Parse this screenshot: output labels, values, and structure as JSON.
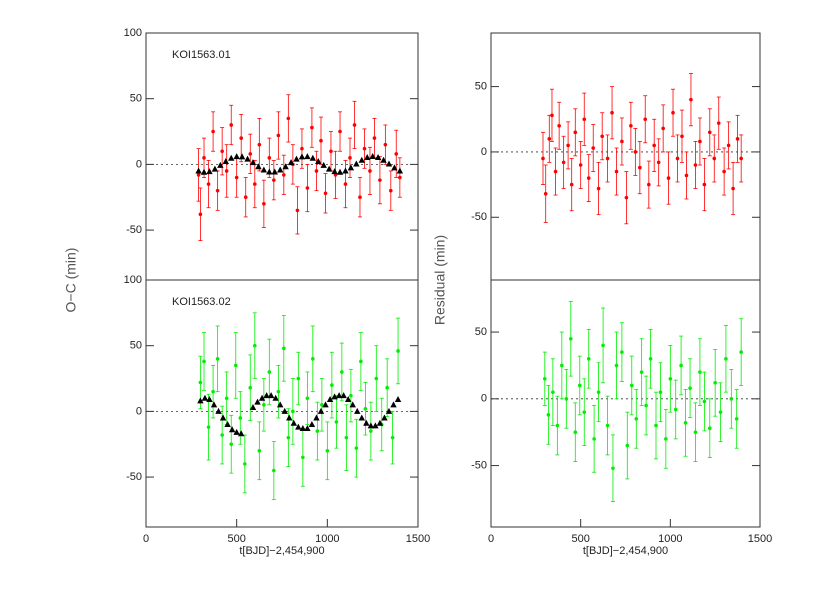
{
  "chart_data": [
    {
      "type": "scatter",
      "annotation": "KOI1563.01",
      "ylabel": "O−C (min)",
      "xlim": [
        0,
        1500
      ],
      "ylim": [
        -88,
        100
      ],
      "yticks": [
        -50,
        0,
        50,
        100
      ],
      "reference_line": 0,
      "series": [
        {
          "color": "#ff0000",
          "marker": "circle",
          "x": [
            290,
            300,
            320,
            345,
            370,
            395,
            420,
            445,
            470,
            500,
            525,
            550,
            575,
            600,
            625,
            650,
            680,
            705,
            730,
            760,
            785,
            810,
            835,
            860,
            890,
            915,
            940,
            965,
            990,
            1020,
            1045,
            1070,
            1100,
            1125,
            1150,
            1180,
            1205,
            1235,
            1260,
            1290,
            1320,
            1350,
            1380,
            1400
          ],
          "values": [
            -8,
            -38,
            5,
            -15,
            25,
            -20,
            10,
            -5,
            30,
            -10,
            20,
            -25,
            8,
            -15,
            15,
            -30,
            5,
            -12,
            22,
            -8,
            35,
            0,
            -35,
            12,
            -18,
            28,
            -5,
            18,
            -22,
            10,
            -8,
            25,
            -15,
            5,
            30,
            -25,
            12,
            -5,
            20,
            -12,
            15,
            -20,
            8,
            -10
          ],
          "errors": [
            20,
            20,
            15,
            18,
            15,
            15,
            18,
            20,
            15,
            15,
            18,
            15,
            15,
            18,
            20,
            18,
            15,
            15,
            18,
            15,
            18,
            15,
            18,
            15,
            18,
            15,
            15,
            18,
            15,
            15,
            18,
            15,
            18,
            15,
            18,
            15,
            15,
            18,
            15,
            18,
            15,
            15,
            18,
            15
          ]
        },
        {
          "color": "#000000",
          "marker": "triangle",
          "x": [
            290,
            320,
            350,
            380,
            410,
            440,
            470,
            500,
            530,
            560,
            590,
            620,
            650,
            680,
            710,
            740,
            770,
            800,
            830,
            860,
            890,
            920,
            950,
            980,
            1010,
            1040,
            1070,
            1100,
            1130,
            1160,
            1190,
            1220,
            1250,
            1280,
            1310,
            1340,
            1370,
            1400
          ],
          "values": [
            -5.0,
            -6.0,
            -5.5,
            -3.6,
            -0.8,
            2.2,
            4.7,
            5.9,
            5.7,
            4.0,
            1.3,
            -1.8,
            -4.3,
            -5.8,
            -5.8,
            -4.3,
            -1.8,
            1.3,
            4.0,
            5.7,
            5.9,
            4.7,
            2.2,
            -0.8,
            -3.6,
            -5.5,
            -6.0,
            -5.0,
            -2.7,
            0.3,
            3.1,
            5.2,
            6.0,
            5.2,
            3.1,
            0.3,
            -2.7,
            -5.0
          ]
        }
      ]
    },
    {
      "type": "scatter",
      "annotation": "KOI1563.02",
      "xlabel": "t[BJD]−2,454,900",
      "xlim": [
        0,
        1500
      ],
      "xticks": [
        0,
        500,
        1000,
        1500
      ],
      "ylim": [
        -88,
        100
      ],
      "yticks": [
        -50,
        0,
        50,
        100
      ],
      "reference_line": 0,
      "series": [
        {
          "color": "#00ee00",
          "marker": "circle",
          "x": [
            300,
            320,
            345,
            370,
            395,
            420,
            445,
            470,
            495,
            520,
            545,
            575,
            600,
            625,
            650,
            680,
            705,
            730,
            760,
            785,
            810,
            840,
            865,
            890,
            920,
            945,
            970,
            1000,
            1025,
            1050,
            1080,
            1105,
            1130,
            1160,
            1185,
            1210,
            1240,
            1270,
            1300,
            1330,
            1360,
            1390
          ],
          "values": [
            22,
            38,
            -12,
            15,
            40,
            -18,
            10,
            -25,
            35,
            -5,
            -40,
            18,
            50,
            -30,
            5,
            30,
            -45,
            15,
            48,
            -20,
            0,
            25,
            -35,
            10,
            40,
            -15,
            5,
            -30,
            20,
            -8,
            30,
            -20,
            12,
            -28,
            38,
            2,
            -15,
            25,
            -10,
            18,
            -20,
            46
          ],
          "errors": [
            20,
            22,
            25,
            20,
            25,
            22,
            20,
            22,
            25,
            20,
            22,
            25,
            25,
            22,
            20,
            25,
            22,
            20,
            25,
            22,
            25,
            20,
            22,
            20,
            25,
            22,
            20,
            22,
            25,
            20,
            22,
            25,
            20,
            22,
            22,
            20,
            22,
            25,
            20,
            22,
            20,
            25
          ]
        },
        {
          "color": "#000000",
          "marker": "triangle",
          "x": [
            300,
            325,
            350,
            375,
            400,
            425,
            450,
            475,
            500,
            525,
            590,
            615,
            640,
            665,
            690,
            715,
            740,
            765,
            790,
            815,
            840,
            865,
            890,
            915,
            940,
            965,
            990,
            1015,
            1040,
            1065,
            1090,
            1115,
            1140,
            1165,
            1190,
            1215,
            1240,
            1265,
            1290,
            1315,
            1340,
            1365,
            1390
          ],
          "values": [
            8,
            10,
            9,
            5,
            0,
            -5,
            -10,
            -14,
            -16,
            -17,
            3,
            7,
            10,
            12,
            12,
            10,
            5,
            0,
            -5,
            -9,
            -12,
            -13,
            -13,
            -10,
            -5,
            0,
            5,
            9,
            11,
            12,
            12,
            9,
            5,
            0,
            -5,
            -9,
            -11,
            -11,
            -9,
            -5,
            0,
            5,
            9
          ]
        }
      ]
    },
    {
      "type": "scatter",
      "ylabel": "Residual (min)",
      "xlim": [
        0,
        1500
      ],
      "ylim": [
        -98,
        91
      ],
      "yticks": [
        -50,
        0,
        50
      ],
      "reference_line": 0,
      "series": [
        {
          "color": "#ff0000",
          "marker": "circle",
          "x": [
            290,
            305,
            325,
            340,
            360,
            380,
            405,
            430,
            450,
            470,
            500,
            520,
            545,
            570,
            600,
            620,
            650,
            675,
            700,
            730,
            755,
            780,
            805,
            830,
            860,
            880,
            910,
            935,
            960,
            990,
            1015,
            1040,
            1065,
            1090,
            1115,
            1140,
            1165,
            1190,
            1220,
            1245,
            1270,
            1300,
            1325,
            1350,
            1375,
            1395
          ],
          "values": [
            -5,
            -32,
            10,
            28,
            -15,
            20,
            -8,
            5,
            -25,
            15,
            -10,
            25,
            -20,
            3,
            -28,
            12,
            -5,
            30,
            -15,
            8,
            -35,
            20,
            0,
            -12,
            25,
            -25,
            5,
            -8,
            18,
            -20,
            30,
            -5,
            12,
            -18,
            40,
            -10,
            8,
            -25,
            15,
            -5,
            22,
            -15,
            5,
            -28,
            10,
            -5
          ],
          "errors": [
            20,
            22,
            18,
            20,
            18,
            18,
            20,
            18,
            20,
            18,
            18,
            20,
            18,
            18,
            20,
            18,
            18,
            20,
            18,
            18,
            20,
            18,
            18,
            20,
            18,
            18,
            20,
            18,
            18,
            20,
            18,
            18,
            20,
            18,
            20,
            18,
            18,
            20,
            18,
            18,
            20,
            18,
            18,
            20,
            18,
            18
          ]
        }
      ]
    },
    {
      "type": "scatter",
      "xlabel": "t[BJD]−2,454,900",
      "xlim": [
        0,
        1500
      ],
      "xticks": [
        0,
        500,
        1000,
        1500
      ],
      "ylim": [
        -96,
        89
      ],
      "yticks": [
        -50,
        0,
        50
      ],
      "reference_line": 0,
      "series": [
        {
          "color": "#00ee00",
          "marker": "circle",
          "x": [
            300,
            320,
            345,
            370,
            395,
            420,
            445,
            470,
            495,
            520,
            545,
            575,
            600,
            625,
            650,
            680,
            700,
            730,
            760,
            785,
            810,
            840,
            865,
            890,
            920,
            945,
            975,
            1000,
            1030,
            1060,
            1085,
            1110,
            1140,
            1165,
            1190,
            1220,
            1250,
            1280,
            1310,
            1340,
            1370,
            1395
          ],
          "values": [
            15,
            -12,
            5,
            -20,
            25,
            0,
            45,
            -25,
            10,
            -10,
            30,
            -30,
            5,
            40,
            -20,
            -52,
            25,
            35,
            -35,
            10,
            -15,
            20,
            -5,
            30,
            -20,
            5,
            -30,
            15,
            -8,
            25,
            -18,
            8,
            -25,
            20,
            -2,
            -22,
            12,
            -10,
            30,
            0,
            -15,
            35
          ],
          "errors": [
            20,
            22,
            25,
            22,
            25,
            22,
            28,
            22,
            22,
            25,
            22,
            25,
            22,
            28,
            22,
            25,
            25,
            22,
            25,
            22,
            22,
            25,
            22,
            22,
            25,
            22,
            22,
            25,
            22,
            22,
            25,
            22,
            22,
            25,
            22,
            22,
            25,
            22,
            25,
            22,
            22,
            25
          ]
        }
      ]
    }
  ]
}
